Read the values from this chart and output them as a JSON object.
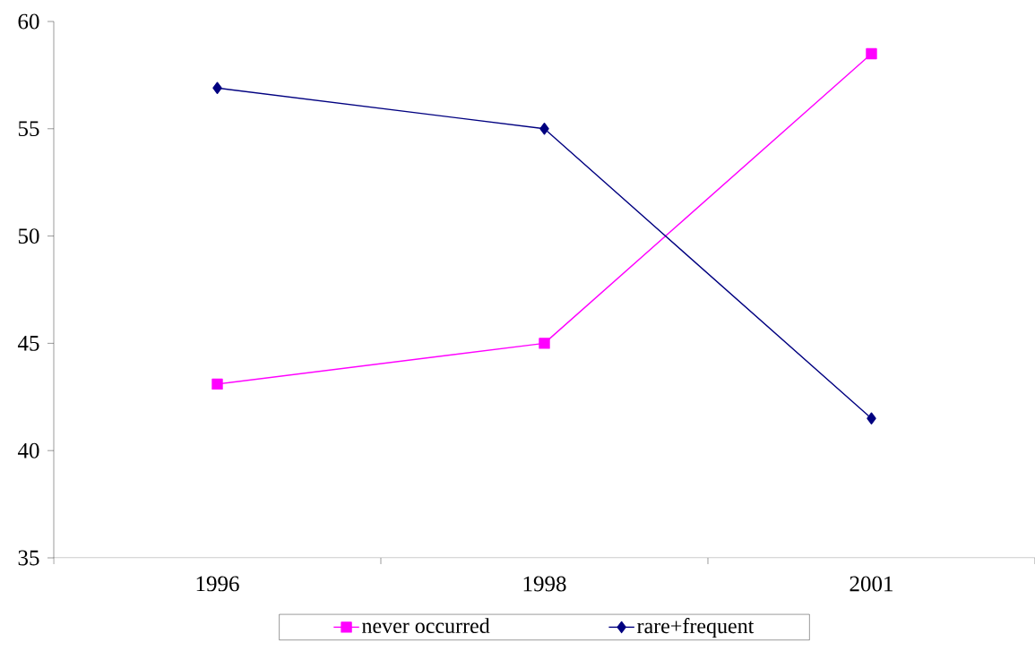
{
  "chart_data": {
    "type": "line",
    "categories": [
      "1996",
      "1998",
      "2001"
    ],
    "series": [
      {
        "name": "never occurred",
        "color": "#ff00ff",
        "marker": "square",
        "values": [
          43.1,
          45,
          58.5
        ]
      },
      {
        "name": "rare+frequent",
        "color": "#000080",
        "marker": "diamond",
        "values": [
          56.9,
          55,
          41.5
        ]
      }
    ],
    "ylim": [
      35,
      60
    ],
    "yticks": [
      35,
      40,
      45,
      50,
      55,
      60
    ],
    "grid": false,
    "legend": "bottom"
  }
}
